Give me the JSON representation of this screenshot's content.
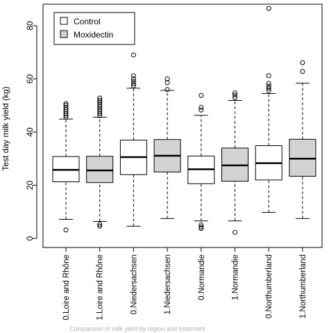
{
  "chart_data": {
    "type": "boxplot",
    "title": "",
    "xlabel": "",
    "ylabel": "Test day milk yield (kg)",
    "ylim": [
      0,
      90
    ],
    "yticks": [
      0,
      20,
      40,
      60,
      80
    ],
    "grid": false,
    "legend_position": "top-left",
    "categories": [
      "0.Loire and Rhône",
      "1.Loire and Rhône",
      "0.Niedersachsen",
      "1.Niedersachsen",
      "0.Normandie",
      "1.Normandie",
      "0.Northumberland",
      "1.Northumberland"
    ],
    "series": [
      {
        "name": "Control",
        "color": "#ffffff"
      },
      {
        "name": "Moxidectin",
        "color": "#d3d3d3"
      }
    ],
    "groups": [
      0,
      1,
      0,
      1,
      0,
      1,
      0,
      1
    ],
    "boxes": [
      {
        "whisker_low": 7.2,
        "q1": 21.3,
        "median": 25.8,
        "q3": 30.8,
        "whisker_high": 44.9,
        "outliers": [
          3.2,
          45.6,
          46.3,
          47.0,
          47.8,
          48.5,
          49.3,
          50.1,
          50.7
        ]
      },
      {
        "whisker_low": 6.4,
        "q1": 21.0,
        "median": 25.6,
        "q3": 30.9,
        "whisker_high": 45.6,
        "outliers": [
          4.6,
          5.3,
          46.2,
          47.0,
          47.8,
          48.6,
          49.5,
          50.3,
          51.2,
          52.0,
          52.8
        ]
      },
      {
        "whisker_low": 4.6,
        "q1": 24.0,
        "median": 30.6,
        "q3": 37.0,
        "whisker_high": 56.5,
        "outliers": [
          57.4,
          58.2,
          59.1,
          60.0,
          61.2,
          69.0
        ]
      },
      {
        "whisker_low": 7.5,
        "q1": 25.0,
        "median": 31.1,
        "q3": 37.2,
        "whisker_high": 55.7,
        "outliers": [
          56.0,
          58.6,
          60.0
        ]
      },
      {
        "whisker_low": 6.6,
        "q1": 20.6,
        "median": 26.0,
        "q3": 31.0,
        "whisker_high": 46.3,
        "outliers": [
          3.8,
          4.3,
          5.1,
          48.3,
          49.3,
          53.8
        ]
      },
      {
        "whisker_low": 6.6,
        "q1": 21.5,
        "median": 27.5,
        "q3": 34.0,
        "whisker_high": 51.9,
        "outliers": [
          2.3,
          52.9,
          53.9,
          54.7
        ]
      },
      {
        "whisker_low": 9.8,
        "q1": 22.0,
        "median": 28.3,
        "q3": 34.9,
        "whisker_high": 54.5,
        "outliers": [
          55.6,
          56.5,
          57.3,
          58.3,
          61.2,
          86.5
        ]
      },
      {
        "whisker_low": 7.5,
        "q1": 23.4,
        "median": 30.0,
        "q3": 37.3,
        "whisker_high": 58.4,
        "outliers": [
          62.8,
          66.1
        ]
      }
    ]
  },
  "footer": {
    "text": "Comparison of milk yield by region and treatment"
  }
}
